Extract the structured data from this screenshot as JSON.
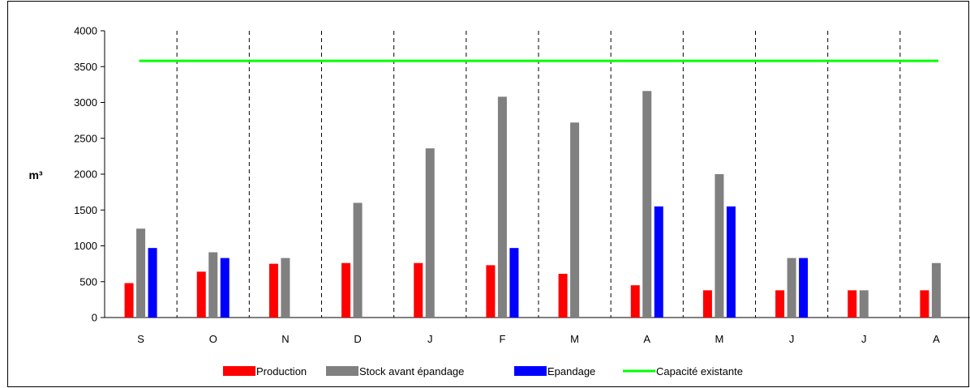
{
  "chart_data": {
    "type": "bar",
    "ylabel": "m³",
    "ylim": [
      0,
      4000
    ],
    "yticks": [
      0,
      500,
      1000,
      1500,
      2000,
      2500,
      3000,
      3500,
      4000
    ],
    "categories": [
      "S",
      "O",
      "N",
      "D",
      "J",
      "F",
      "M",
      "A",
      "M",
      "J",
      "J",
      "A"
    ],
    "series": [
      {
        "name": "Production",
        "color": "#ff0000",
        "values": [
          480,
          640,
          750,
          760,
          760,
          730,
          610,
          450,
          380,
          380,
          380,
          380
        ]
      },
      {
        "name": "Stock avant épandage",
        "color": "#808080",
        "values": [
          1240,
          910,
          830,
          1600,
          2360,
          3080,
          2720,
          3160,
          2000,
          830,
          380,
          760
        ]
      },
      {
        "name": "Epandage",
        "color": "#0000ff",
        "values": [
          970,
          830,
          0,
          0,
          0,
          970,
          0,
          1550,
          1550,
          830,
          0,
          0
        ]
      }
    ],
    "line": {
      "name": "Capacité existante",
      "color": "#00ff00",
      "value": 3580
    },
    "legend_position": "bottom",
    "grid": false,
    "month_separators": "dashed"
  }
}
